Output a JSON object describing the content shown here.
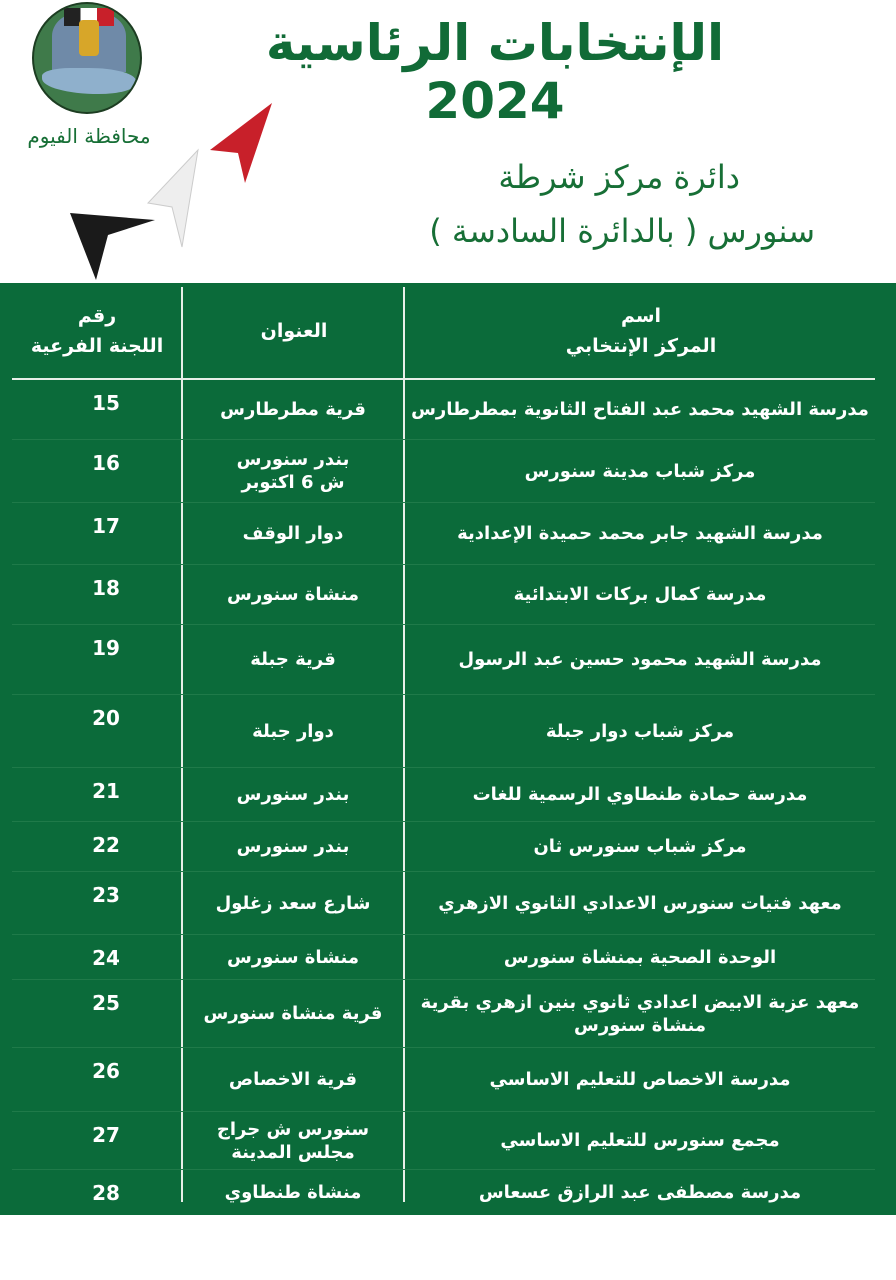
{
  "logo": {
    "text": "محافظة الفيوم"
  },
  "title": "الإنتخابات الرئاسية 2024",
  "subtitle_line1": "دائرة مركز شرطة",
  "subtitle_line2": "سنورس   ( بالدائرة السادسة )",
  "colors": {
    "green": "#0b6b3a",
    "title_green": "#116b37",
    "arrow_red": "#c8202a",
    "arrow_white": "#eeeeee",
    "arrow_black": "#1a1a1a"
  },
  "table": {
    "headers": {
      "name": "اسم\nالمركز الإنتخابي",
      "address": "العنوان",
      "number": "رقم\nاللجنة الفرعية"
    },
    "rows": [
      {
        "number": "15",
        "address": "قرية مطرطارس",
        "name": "مدرسة الشهيد محمد عبد الفتاح الثانوية بمطرطارس"
      },
      {
        "number": "16",
        "address": "بندر سنورس\nش 6 اكتوبر",
        "name": "مركز شباب مدينة سنورس"
      },
      {
        "number": "17",
        "address": "دوار الوقف",
        "name": "مدرسة الشهيد جابر محمد حميدة الإعدادية"
      },
      {
        "number": "18",
        "address": "منشاة سنورس",
        "name": "مدرسة كمال بركات الابتدائية"
      },
      {
        "number": "19",
        "address": "قرية جبلة",
        "name": "مدرسة الشهيد محمود حسين عبد الرسول"
      },
      {
        "number": "20",
        "address": "دوار جبلة",
        "name": "مركز شباب دوار جبلة"
      },
      {
        "number": "21",
        "address": "بندر سنورس",
        "name": "مدرسة حمادة طنطاوي الرسمية للغات"
      },
      {
        "number": "22",
        "address": "بندر سنورس",
        "name": "مركز شباب سنورس ثان"
      },
      {
        "number": "23",
        "address": "شارع سعد زغلول",
        "name": "معهد فتيات سنورس الاعدادي الثانوي الازهري"
      },
      {
        "number": "24",
        "address": "منشاة سنورس",
        "name": "الوحدة الصحية بمنشاة سنورس"
      },
      {
        "number": "25",
        "address": "قرية منشاة سنورس",
        "name": "معهد عزبة الابيض اعدادي ثانوي بنين ازهري بقرية منشاة سنورس"
      },
      {
        "number": "26",
        "address": "قرية الاخصاص",
        "name": "مدرسة الاخصاص للتعليم الاساسي"
      },
      {
        "number": "27",
        "address": "سنورس ش جراج\nمجلس المدينة",
        "name": "مجمع سنورس للتعليم الاساسي"
      },
      {
        "number": "28",
        "address": "منشاة طنطاوي",
        "name": "مدرسة مصطفى عبد الرازق عسعاس"
      }
    ]
  }
}
